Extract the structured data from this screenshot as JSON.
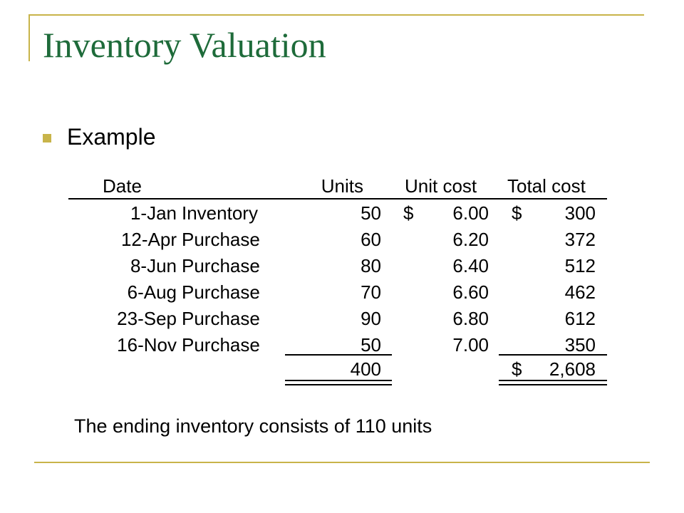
{
  "title": "Inventory Valuation",
  "bullet": "Example",
  "table": {
    "headers": {
      "date": "Date",
      "units": "Units",
      "unit_cost": "Unit cost",
      "total_cost": "Total cost"
    },
    "rows": [
      {
        "date": "1-Jan",
        "desc": "Inventory",
        "units": "50",
        "cost_sym": "$",
        "unit_cost": "6.00",
        "total_sym": "$",
        "total": "300"
      },
      {
        "date": "12-Apr",
        "desc": "Purchase",
        "units": "60",
        "cost_sym": "",
        "unit_cost": "6.20",
        "total_sym": "",
        "total": "372"
      },
      {
        "date": "8-Jun",
        "desc": "Purchase",
        "units": "80",
        "cost_sym": "",
        "unit_cost": "6.40",
        "total_sym": "",
        "total": "512"
      },
      {
        "date": "6-Aug",
        "desc": "Purchase",
        "units": "70",
        "cost_sym": "",
        "unit_cost": "6.60",
        "total_sym": "",
        "total": "462"
      },
      {
        "date": "23-Sep",
        "desc": "Purchase",
        "units": "90",
        "cost_sym": "",
        "unit_cost": "6.80",
        "total_sym": "",
        "total": "612"
      },
      {
        "date": "16-Nov",
        "desc": "Purchase",
        "units": "50",
        "cost_sym": "",
        "unit_cost": "7.00",
        "total_sym": "",
        "total": "350"
      }
    ],
    "totals": {
      "units": "400",
      "total_sym": "$",
      "total": "2,608"
    }
  },
  "footer": "The ending inventory consists of 110 units",
  "colors": {
    "title": "#1e6b3a",
    "accent": "#c8b44a"
  }
}
